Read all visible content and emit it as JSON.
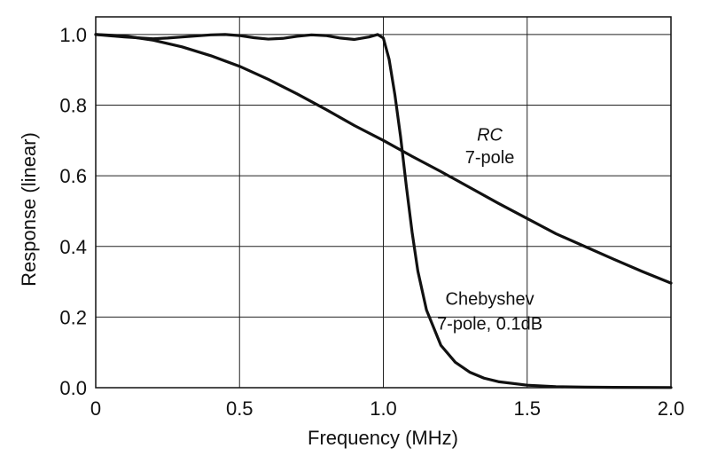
{
  "chart_data": {
    "type": "line",
    "xlabel": "Frequency (MHz)",
    "ylabel": "Response (linear)",
    "xlim": [
      0,
      2.0
    ],
    "ylim": [
      0,
      1.05
    ],
    "x_ticks": [
      "0",
      "0.5",
      "1.0",
      "1.5",
      "2.0"
    ],
    "x_tick_values": [
      0,
      0.5,
      1.0,
      1.5,
      2.0
    ],
    "y_ticks": [
      "0.0",
      "0.2",
      "0.4",
      "0.6",
      "0.8",
      "1.0"
    ],
    "y_tick_values": [
      0,
      0.2,
      0.4,
      0.6,
      0.8,
      1.0
    ],
    "grid": true,
    "series": [
      {
        "x": [
          0,
          0.1,
          0.2,
          0.25,
          0.3,
          0.4,
          0.45,
          0.5,
          0.55,
          0.6,
          0.65,
          0.7,
          0.75,
          0.8,
          0.85,
          0.9,
          0.95,
          0.98,
          1.0,
          1.02,
          1.04,
          1.06,
          1.08,
          1.1,
          1.12,
          1.15,
          1.2,
          1.25,
          1.3,
          1.35,
          1.4,
          1.5,
          1.6,
          1.7,
          1.8,
          2.0
        ],
        "values": [
          1.0,
          0.993,
          0.988,
          0.99,
          0.993,
          0.999,
          1.0,
          0.997,
          0.991,
          0.987,
          0.989,
          0.995,
          0.999,
          0.997,
          0.99,
          0.986,
          0.993,
          1.0,
          0.99,
          0.93,
          0.83,
          0.71,
          0.57,
          0.44,
          0.33,
          0.22,
          0.12,
          0.072,
          0.044,
          0.027,
          0.017,
          0.007,
          0.003,
          0.0015,
          0.001,
          0.0005
        ]
      },
      {
        "x": [
          0,
          0.1,
          0.2,
          0.3,
          0.4,
          0.5,
          0.6,
          0.7,
          0.8,
          0.9,
          1.0,
          1.1,
          1.2,
          1.3,
          1.4,
          1.5,
          1.6,
          1.7,
          1.8,
          1.9,
          2.0
        ],
        "values": [
          1.0,
          0.996,
          0.984,
          0.965,
          0.94,
          0.91,
          0.873,
          0.832,
          0.788,
          0.742,
          0.7,
          0.655,
          0.612,
          0.567,
          0.522,
          0.479,
          0.436,
          0.4,
          0.364,
          0.329,
          0.296
        ]
      }
    ],
    "annotations": [
      {
        "text": "RC",
        "italic": true,
        "x": 1.37,
        "y": 0.7
      },
      {
        "text": "7-pole",
        "italic": false,
        "x": 1.37,
        "y": 0.635
      },
      {
        "text": "Chebyshev",
        "italic": false,
        "x": 1.37,
        "y": 0.235
      },
      {
        "text": "7-pole, 0.1dB",
        "italic": false,
        "x": 1.37,
        "y": 0.165
      }
    ]
  }
}
